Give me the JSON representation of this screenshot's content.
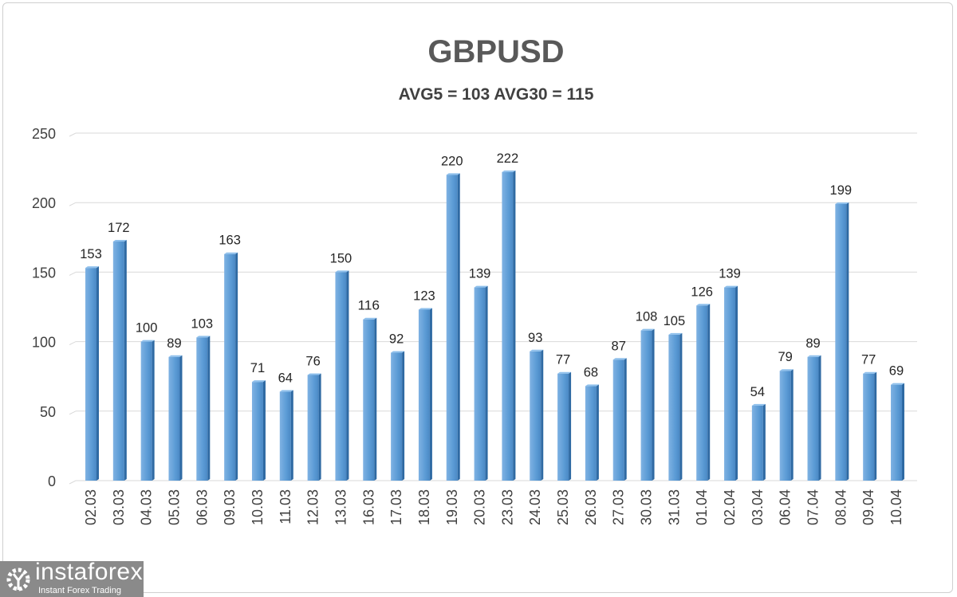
{
  "chart_data": {
    "type": "bar",
    "title": "GBPUSD",
    "subtitle": "AVG5 = 103 AVG30 = 115",
    "categories": [
      "02.03",
      "03.03",
      "04.03",
      "05.03",
      "06.03",
      "09.03",
      "10.03",
      "11.03",
      "12.03",
      "13.03",
      "16.03",
      "17.03",
      "18.03",
      "19.03",
      "20.03",
      "23.03",
      "24.03",
      "25.03",
      "26.03",
      "27.03",
      "30.03",
      "31.03",
      "01.04",
      "02.04",
      "03.04",
      "06.04",
      "07.04",
      "08.04",
      "09.04",
      "10.04"
    ],
    "values": [
      153,
      172,
      100,
      89,
      103,
      163,
      71,
      64,
      76,
      150,
      116,
      92,
      123,
      220,
      139,
      222,
      93,
      77,
      68,
      87,
      108,
      105,
      126,
      139,
      54,
      79,
      89,
      199,
      77,
      69
    ],
    "ylim": [
      0,
      250
    ],
    "yticks": [
      0,
      50,
      100,
      150,
      200,
      250
    ],
    "grid": true,
    "bar_color": "#5b9bd5",
    "data_labels": true
  },
  "logo": {
    "brand": "instaforex",
    "tagline": "Instant Forex Trading"
  }
}
